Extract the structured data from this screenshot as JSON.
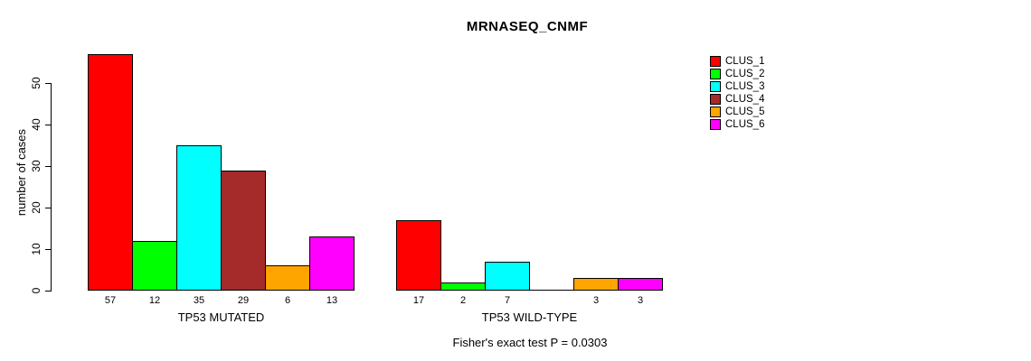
{
  "title": "MRNASEQ_CNMF",
  "chart_data": {
    "type": "bar",
    "title": "MRNASEQ_CNMF",
    "xlabel": "",
    "ylabel": "number of cases",
    "ylim": [
      0,
      57
    ],
    "y_ticks": [
      0,
      10,
      20,
      30,
      40,
      50
    ],
    "grid": false,
    "legend_position": "right-outside",
    "series": [
      {
        "name": "CLUS_1",
        "color": "#FF0000"
      },
      {
        "name": "CLUS_2",
        "color": "#00FF00"
      },
      {
        "name": "CLUS_3",
        "color": "#00FFFF"
      },
      {
        "name": "CLUS_4",
        "color": "#A52A2A"
      },
      {
        "name": "CLUS_5",
        "color": "#FFA500"
      },
      {
        "name": "CLUS_6",
        "color": "#FF00FF"
      }
    ],
    "groups": [
      {
        "label": "TP53 MUTATED",
        "values": [
          57,
          12,
          35,
          29,
          6,
          13
        ]
      },
      {
        "label": "TP53 WILD-TYPE",
        "values": [
          17,
          2,
          7,
          0,
          3,
          3
        ]
      }
    ],
    "annotation": "Fisher's exact test P = 0.0303"
  }
}
